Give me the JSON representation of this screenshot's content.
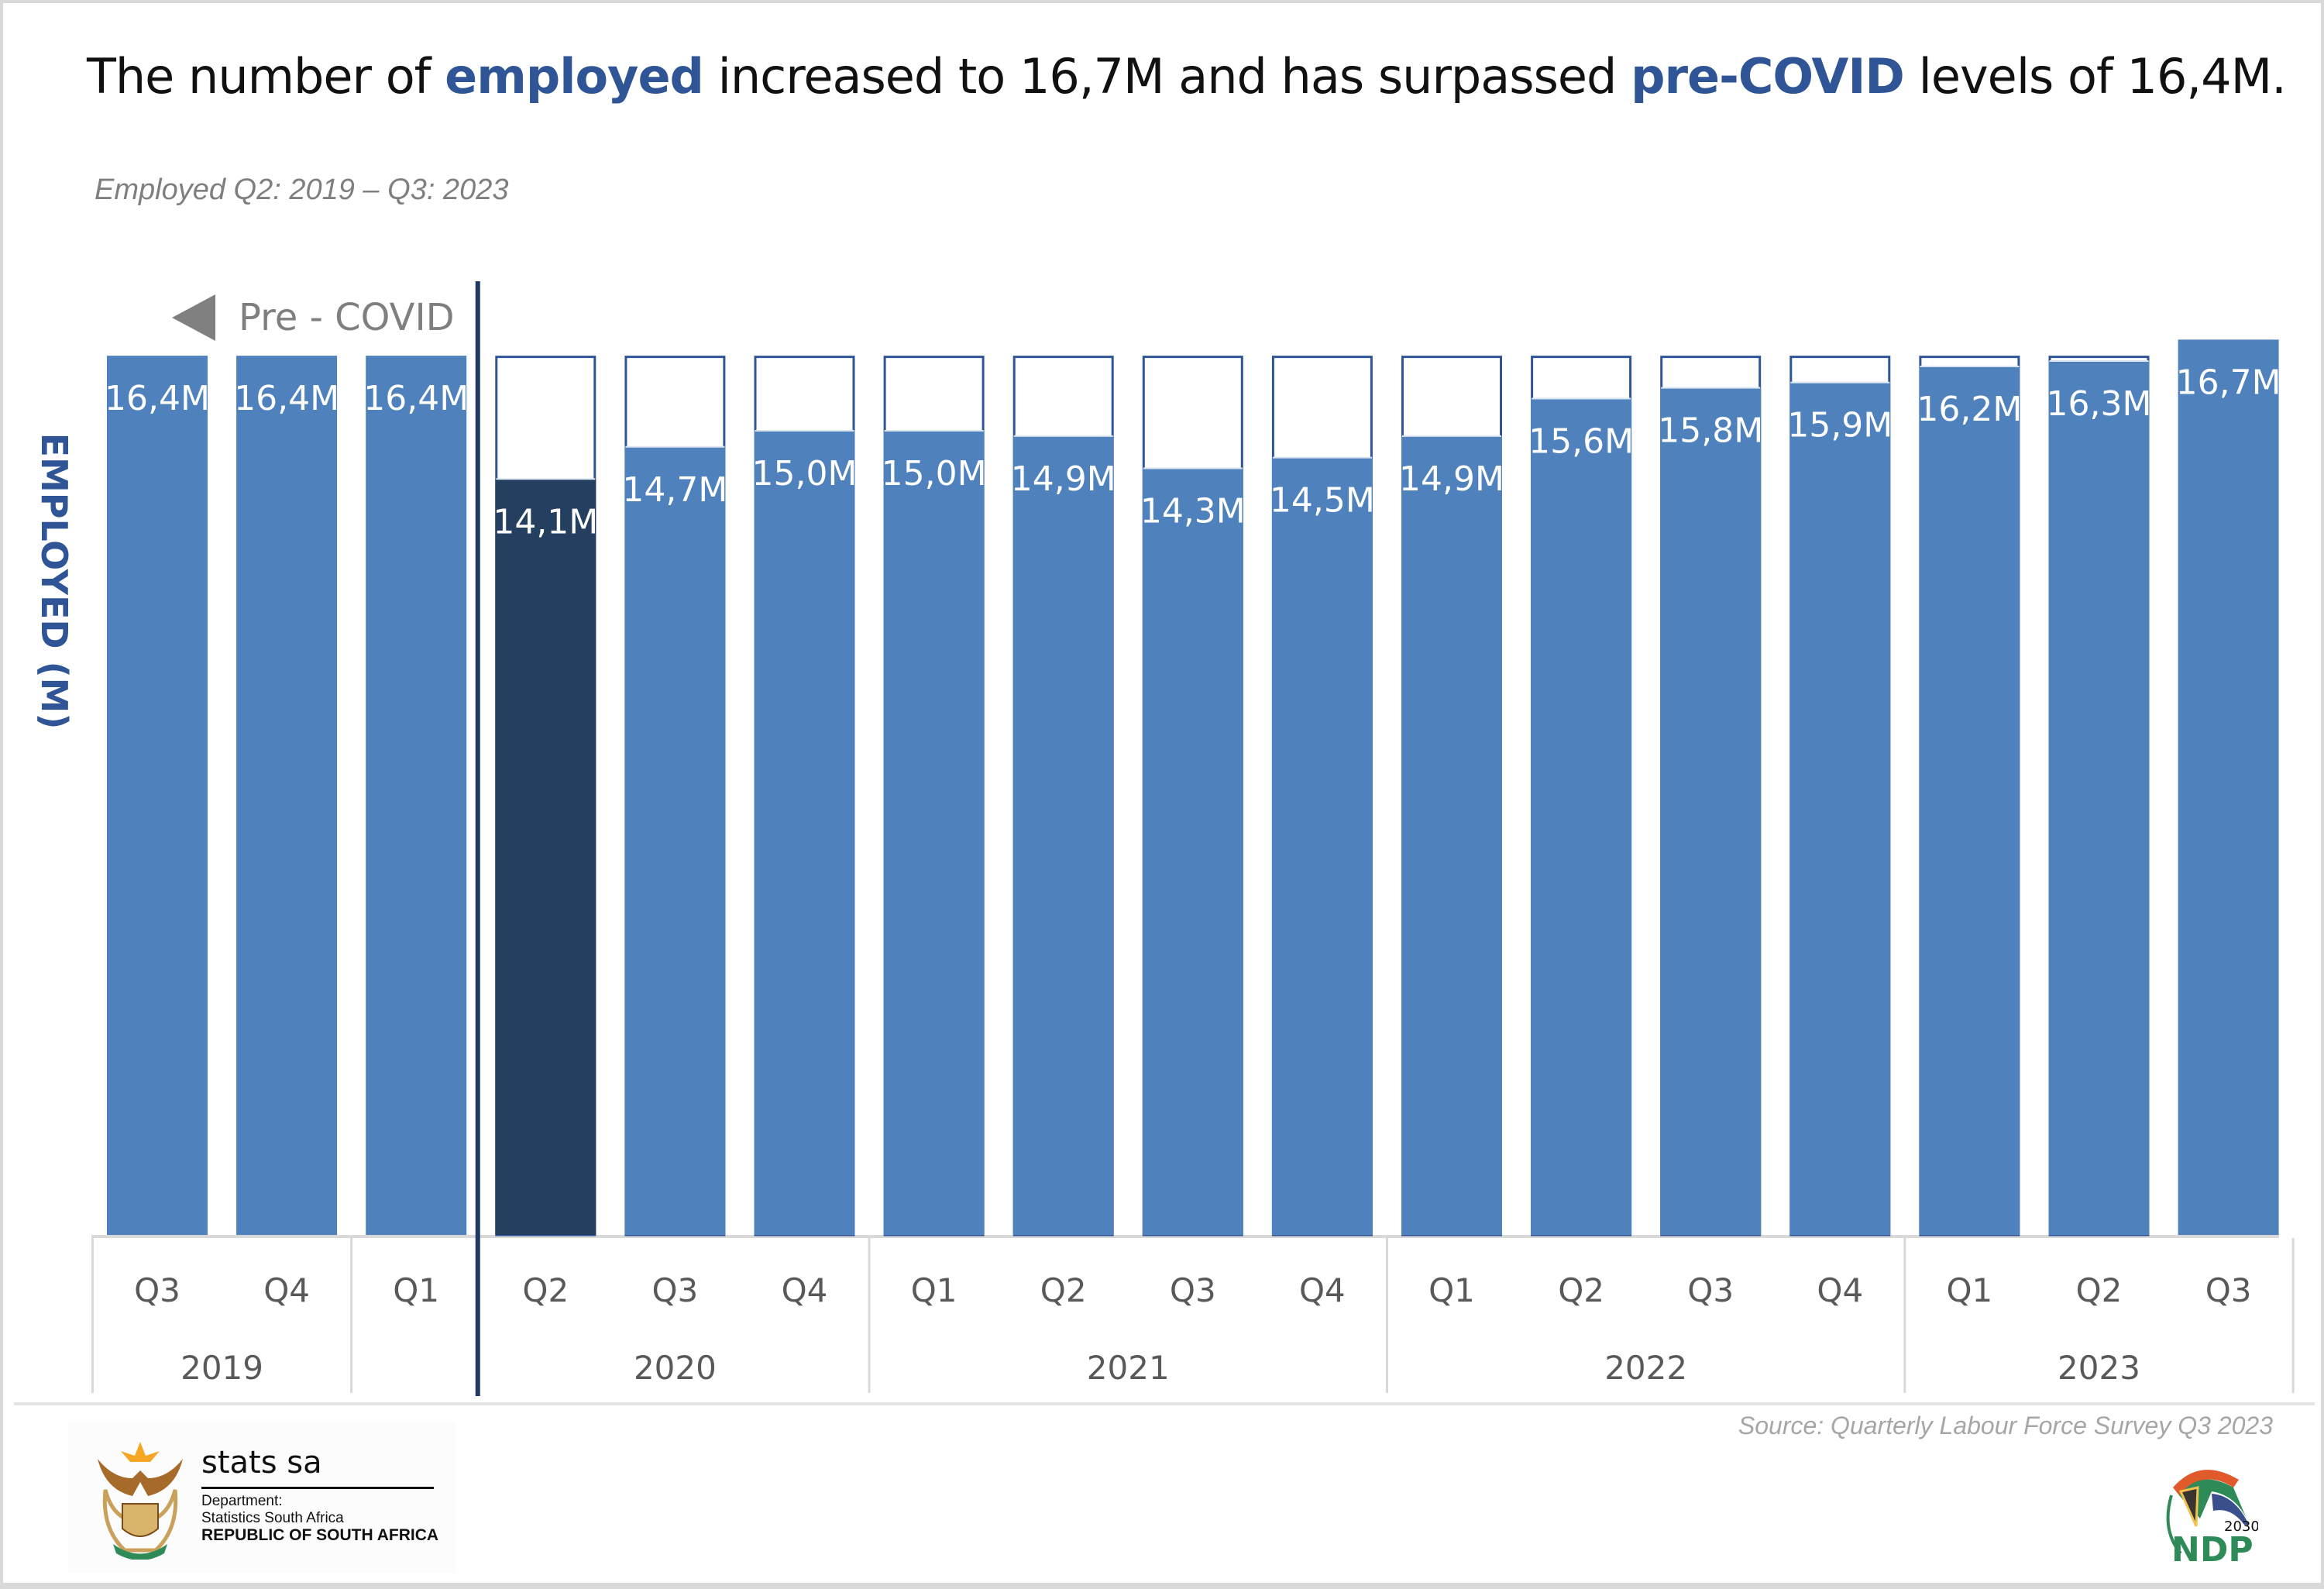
{
  "header": {
    "title_parts": [
      {
        "text": "The number of ",
        "highlight": false
      },
      {
        "text": "employed",
        "highlight": true
      },
      {
        "text": " increased to 16,7M and has surpassed ",
        "highlight": false
      },
      {
        "text": "pre-COVID",
        "highlight": true
      },
      {
        "text": " levels of 16,4M.",
        "highlight": false
      }
    ],
    "subtitle": "Employed Q2: 2019 – Q3: 2023"
  },
  "annotation": {
    "pre_covid_label": "Pre - COVID",
    "arrow_icon": "left-triangle-icon"
  },
  "colors": {
    "bar": "#4f81bd",
    "bar_highlight": "#243f60",
    "outline": "#2f5597",
    "accent_text": "#2f5597",
    "divider": "#1f3864"
  },
  "chart_data": {
    "type": "bar",
    "title": "The number of employed increased to 16,7M and has surpassed pre-COVID levels of 16,4M.",
    "subtitle": "Employed Q2: 2019 – Q3: 2023",
    "xlabel": "",
    "ylabel": "EMPLOYED (M)",
    "ylim": [
      0,
      16.7
    ],
    "grid": false,
    "legend": "none",
    "reference_level": 16.4,
    "reference_label": "pre-COVID level",
    "categories": [
      "Q3",
      "Q4",
      "Q1",
      "Q2",
      "Q3",
      "Q4",
      "Q1",
      "Q2",
      "Q3",
      "Q4",
      "Q1",
      "Q2",
      "Q3",
      "Q4",
      "Q1",
      "Q2",
      "Q3"
    ],
    "years": [
      {
        "label": "2019",
        "span": 2
      },
      {
        "label": "2020",
        "span": 4
      },
      {
        "label": "2021",
        "span": 4
      },
      {
        "label": "2022",
        "span": 4
      },
      {
        "label": "2023",
        "span": 3
      }
    ],
    "year_boundary_note": "Q1 2020 shares the 2019-2020 group boundary; divider after Q1 2020 marks COVID",
    "values": [
      16.4,
      16.4,
      16.4,
      14.1,
      14.7,
      15.0,
      15.0,
      14.9,
      14.3,
      14.5,
      14.9,
      15.6,
      15.8,
      15.9,
      16.2,
      16.3,
      16.7
    ],
    "data_labels": [
      "16,4M",
      "16,4M",
      "16,4M",
      "14,1M",
      "14,7M",
      "15,0M",
      "15,0M",
      "14,9M",
      "14,3M",
      "14,5M",
      "14,9M",
      "15,6M",
      "15,8M",
      "15,9M",
      "16,2M",
      "16,3M",
      "16,7M"
    ],
    "highlight_index": 3,
    "covid_divider_after_index": 2
  },
  "footer": {
    "source": "Source: Quarterly Labour Force Survey  Q3 2023",
    "org_name": "stats sa",
    "dept_line1": "Department:",
    "dept_line2": "Statistics South Africa",
    "dept_line3": "REPUBLIC OF SOUTH AFRICA",
    "ndp_year": "2030",
    "ndp_text": "NDP"
  }
}
